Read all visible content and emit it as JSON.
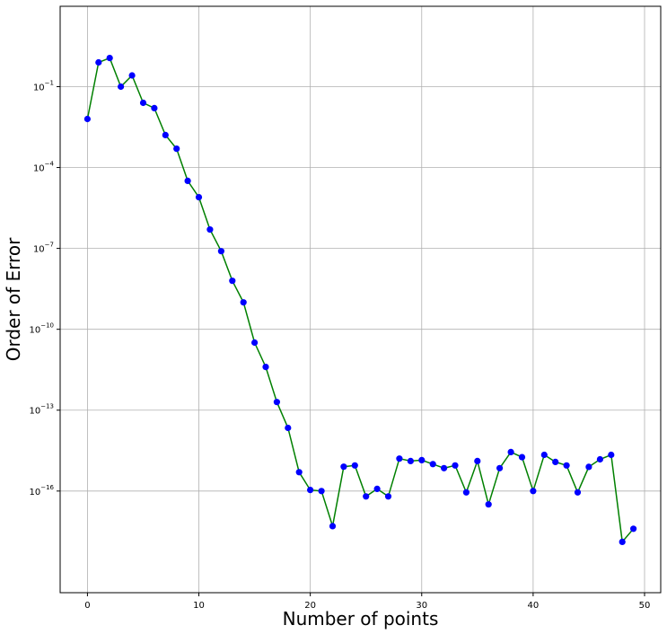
{
  "chart_data": {
    "type": "line",
    "xlabel": "Number of points",
    "ylabel": "Order of Error",
    "yscale": "log",
    "xlim": [
      -2.45,
      51.45
    ],
    "ylim_log10": [
      -19.77,
      1.98
    ],
    "grid": true,
    "line_color": "#008000",
    "marker_color": "#0000ff",
    "x_ticks": [
      0,
      10,
      20,
      30,
      40,
      50
    ],
    "y_ticks": [
      {
        "exp": -1,
        "mant": "10",
        "sup": "−1"
      },
      {
        "exp": -4,
        "mant": "10",
        "sup": "−4"
      },
      {
        "exp": -7,
        "mant": "10",
        "sup": "−7"
      },
      {
        "exp": -10,
        "mant": "10",
        "sup": "−10"
      },
      {
        "exp": -13,
        "mant": "10",
        "sup": "−13"
      },
      {
        "exp": -16,
        "mant": "10",
        "sup": "−16"
      }
    ],
    "series": [
      {
        "x": [
          0,
          1,
          2,
          3,
          4,
          5,
          6,
          7,
          8,
          9,
          10,
          11,
          12,
          13,
          14,
          15,
          16,
          17,
          18,
          19,
          20,
          21,
          22,
          23,
          24,
          25,
          26,
          27,
          28,
          29,
          30,
          31,
          32,
          33,
          34,
          35,
          36,
          37,
          38,
          39,
          40,
          41,
          42,
          43,
          44,
          45,
          46,
          47,
          48,
          49
        ],
        "y": [
          0.0063,
          0.79,
          1.15,
          0.1,
          0.26,
          0.025,
          0.016,
          0.0016,
          0.0005,
          3.2e-05,
          7.9e-06,
          5e-07,
          7.9e-08,
          6.3e-09,
          1e-09,
          3.2e-11,
          4e-12,
          2e-13,
          2.2e-14,
          5e-16,
          1.1e-16,
          1e-16,
          5e-18,
          8e-16,
          8.9e-16,
          6.3e-17,
          1.2e-16,
          6.3e-17,
          1.6e-15,
          1.3e-15,
          1.4e-15,
          1e-15,
          7.1e-16,
          8.9e-16,
          8.9e-17,
          1.3e-15,
          3.2e-17,
          7.1e-16,
          2.8e-15,
          1.8e-15,
          1e-16,
          2.2e-15,
          1.2e-15,
          8.9e-16,
          8.9e-17,
          7.9e-16,
          1.5e-15,
          2.2e-15,
          1.3e-18,
          4e-18
        ]
      }
    ]
  }
}
